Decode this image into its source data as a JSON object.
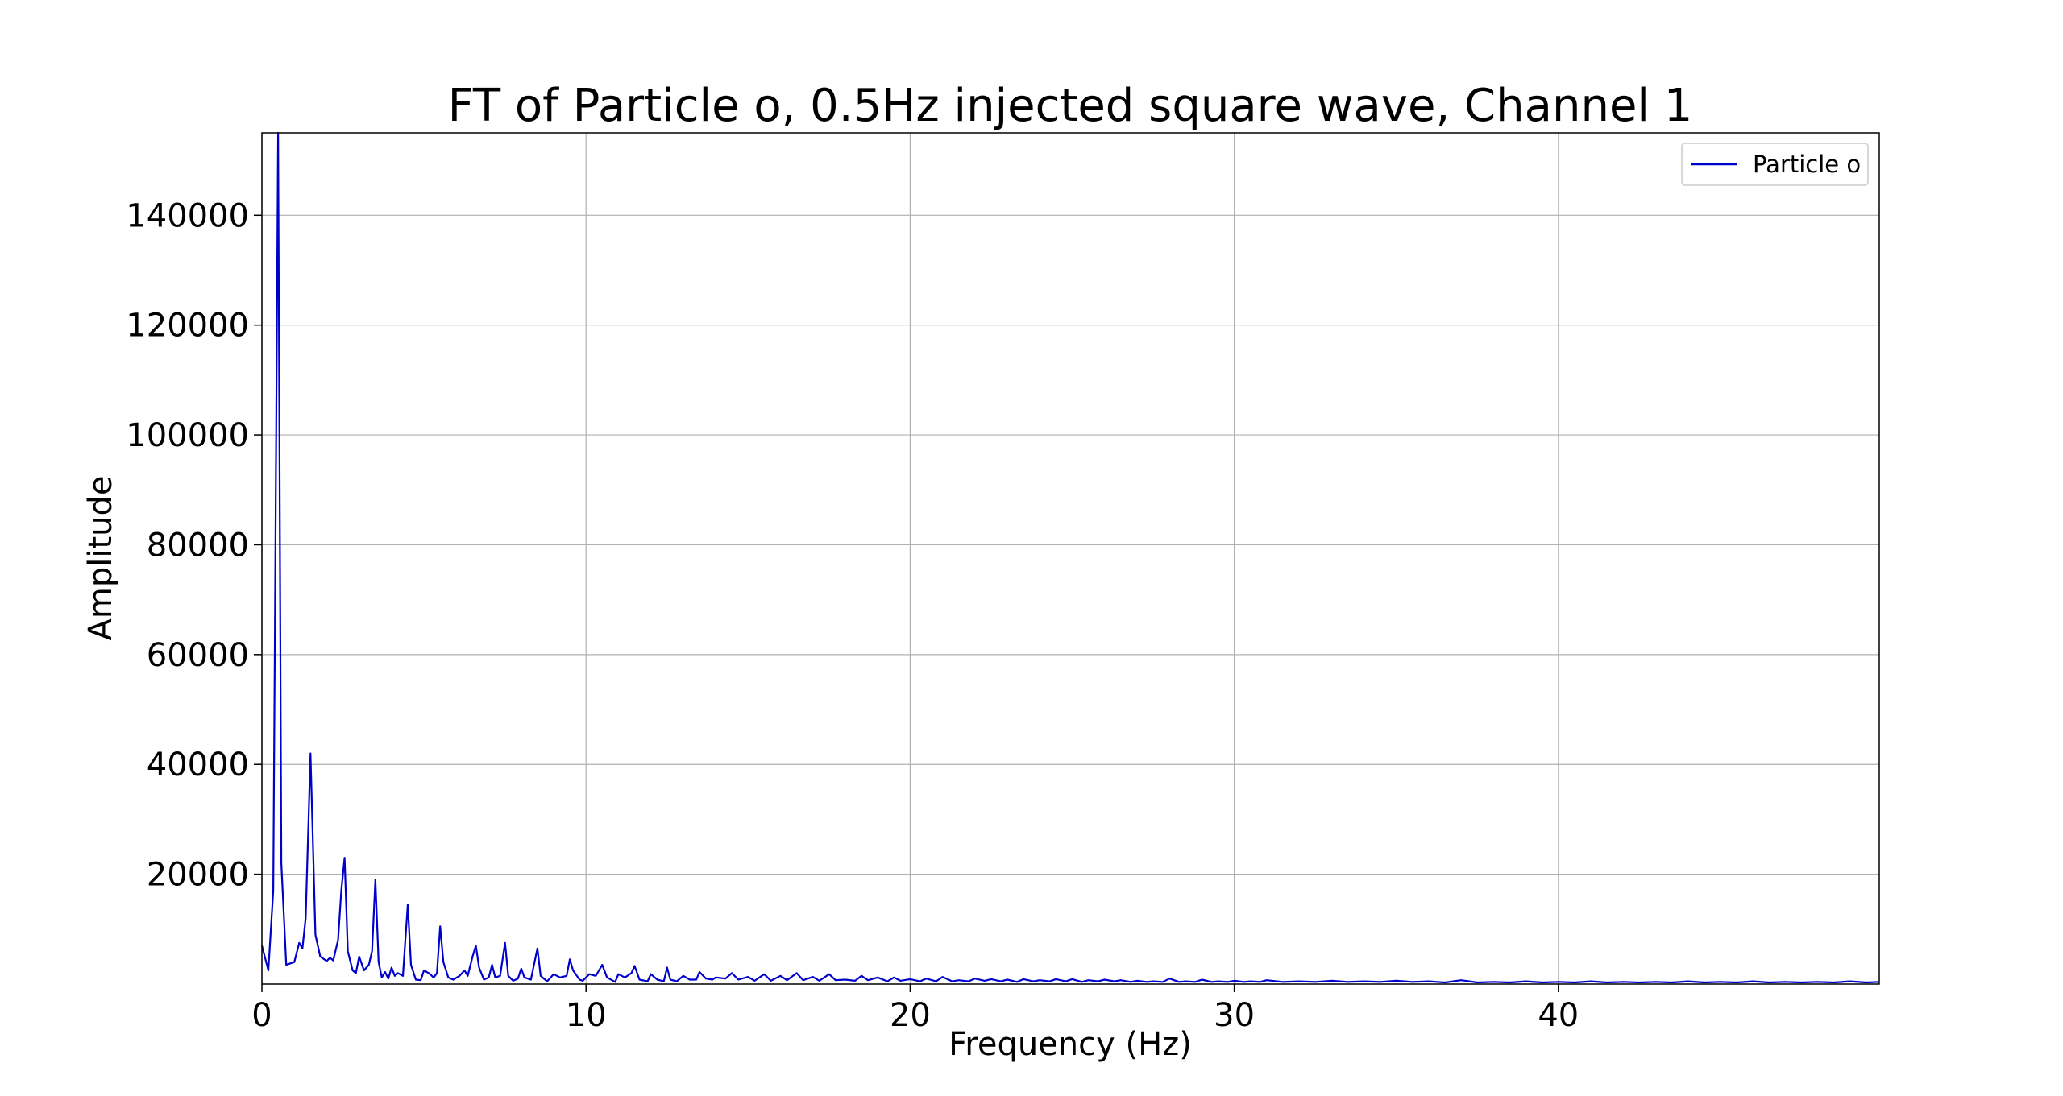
{
  "chart_data": {
    "type": "line",
    "title": "FT of Particle o, 0.5Hz injected square wave, Channel 1",
    "xlabel": "Frequency (Hz)",
    "ylabel": "Amplitude",
    "xlim": [
      0,
      49.9
    ],
    "ylim": [
      0,
      155000
    ],
    "x_ticks": [
      0,
      10,
      20,
      30,
      40
    ],
    "y_ticks": [
      20000,
      40000,
      60000,
      80000,
      100000,
      120000,
      140000
    ],
    "x_tick_labels": [
      "0",
      "10",
      "20",
      "30",
      "40"
    ],
    "y_tick_labels": [
      "20000",
      "40000",
      "60000",
      "80000",
      "100000",
      "120000",
      "140000"
    ],
    "grid": true,
    "legend": {
      "position": "top-right",
      "entries": [
        "Particle o"
      ]
    },
    "series": [
      {
        "name": "Particle o",
        "color": "#0000cc",
        "points": [
          [
            0.0,
            7000
          ],
          [
            0.2,
            2500
          ],
          [
            0.35,
            17000
          ],
          [
            0.5,
            155000
          ],
          [
            0.6,
            22000
          ],
          [
            0.75,
            3500
          ],
          [
            1.0,
            4000
          ],
          [
            1.15,
            7500
          ],
          [
            1.25,
            6500
          ],
          [
            1.35,
            12000
          ],
          [
            1.5,
            42000
          ],
          [
            1.65,
            9000
          ],
          [
            1.8,
            5000
          ],
          [
            2.0,
            4200
          ],
          [
            2.1,
            4800
          ],
          [
            2.2,
            4300
          ],
          [
            2.35,
            8000
          ],
          [
            2.45,
            17000
          ],
          [
            2.55,
            23000
          ],
          [
            2.65,
            6000
          ],
          [
            2.8,
            2500
          ],
          [
            2.9,
            2000
          ],
          [
            3.0,
            5000
          ],
          [
            3.15,
            2500
          ],
          [
            3.3,
            3500
          ],
          [
            3.4,
            6000
          ],
          [
            3.5,
            19000
          ],
          [
            3.6,
            4000
          ],
          [
            3.7,
            1200
          ],
          [
            3.8,
            2200
          ],
          [
            3.9,
            1000
          ],
          [
            4.0,
            3000
          ],
          [
            4.1,
            1500
          ],
          [
            4.2,
            2000
          ],
          [
            4.35,
            1500
          ],
          [
            4.5,
            14500
          ],
          [
            4.6,
            3500
          ],
          [
            4.75,
            800
          ],
          [
            4.9,
            700
          ],
          [
            5.0,
            2500
          ],
          [
            5.15,
            2000
          ],
          [
            5.3,
            1200
          ],
          [
            5.4,
            2000
          ],
          [
            5.5,
            10500
          ],
          [
            5.6,
            4000
          ],
          [
            5.75,
            1200
          ],
          [
            5.9,
            800
          ],
          [
            6.1,
            1500
          ],
          [
            6.25,
            2500
          ],
          [
            6.35,
            1500
          ],
          [
            6.5,
            5000
          ],
          [
            6.6,
            7000
          ],
          [
            6.7,
            3000
          ],
          [
            6.85,
            800
          ],
          [
            7.0,
            1200
          ],
          [
            7.1,
            3500
          ],
          [
            7.2,
            1200
          ],
          [
            7.35,
            1500
          ],
          [
            7.5,
            7500
          ],
          [
            7.6,
            1500
          ],
          [
            7.75,
            600
          ],
          [
            7.9,
            1000
          ],
          [
            8.0,
            2800
          ],
          [
            8.1,
            1200
          ],
          [
            8.3,
            800
          ],
          [
            8.5,
            6500
          ],
          [
            8.6,
            1500
          ],
          [
            8.8,
            500
          ],
          [
            9.0,
            1800
          ],
          [
            9.2,
            1200
          ],
          [
            9.4,
            1500
          ],
          [
            9.5,
            4500
          ],
          [
            9.6,
            2500
          ],
          [
            9.8,
            800
          ],
          [
            9.9,
            600
          ],
          [
            10.1,
            1800
          ],
          [
            10.3,
            1500
          ],
          [
            10.4,
            2500
          ],
          [
            10.5,
            3500
          ],
          [
            10.65,
            1200
          ],
          [
            10.9,
            400
          ],
          [
            11.0,
            1800
          ],
          [
            11.2,
            1200
          ],
          [
            11.4,
            2000
          ],
          [
            11.5,
            3300
          ],
          [
            11.65,
            800
          ],
          [
            11.9,
            500
          ],
          [
            12.0,
            1800
          ],
          [
            12.2,
            800
          ],
          [
            12.4,
            500
          ],
          [
            12.5,
            3000
          ],
          [
            12.6,
            800
          ],
          [
            12.8,
            500
          ],
          [
            13.0,
            1500
          ],
          [
            13.2,
            800
          ],
          [
            13.4,
            800
          ],
          [
            13.5,
            2200
          ],
          [
            13.7,
            1000
          ],
          [
            13.9,
            800
          ],
          [
            14.0,
            1200
          ],
          [
            14.3,
            1000
          ],
          [
            14.5,
            2000
          ],
          [
            14.7,
            800
          ],
          [
            15.0,
            1300
          ],
          [
            15.2,
            600
          ],
          [
            15.5,
            1800
          ],
          [
            15.7,
            600
          ],
          [
            16.0,
            1500
          ],
          [
            16.2,
            700
          ],
          [
            16.5,
            2000
          ],
          [
            16.7,
            700
          ],
          [
            17.0,
            1300
          ],
          [
            17.2,
            600
          ],
          [
            17.5,
            1800
          ],
          [
            17.7,
            700
          ],
          [
            18.0,
            800
          ],
          [
            18.3,
            600
          ],
          [
            18.5,
            1500
          ],
          [
            18.7,
            700
          ],
          [
            19.0,
            1200
          ],
          [
            19.3,
            500
          ],
          [
            19.5,
            1200
          ],
          [
            19.7,
            600
          ],
          [
            20.0,
            900
          ],
          [
            20.3,
            500
          ],
          [
            20.5,
            1000
          ],
          [
            20.8,
            500
          ],
          [
            21.0,
            1300
          ],
          [
            21.3,
            500
          ],
          [
            21.5,
            700
          ],
          [
            21.8,
            500
          ],
          [
            22.0,
            1000
          ],
          [
            22.3,
            600
          ],
          [
            22.5,
            900
          ],
          [
            22.8,
            500
          ],
          [
            23.0,
            800
          ],
          [
            23.3,
            400
          ],
          [
            23.5,
            900
          ],
          [
            23.8,
            500
          ],
          [
            24.0,
            700
          ],
          [
            24.3,
            500
          ],
          [
            24.5,
            900
          ],
          [
            24.8,
            500
          ],
          [
            25.0,
            900
          ],
          [
            25.3,
            400
          ],
          [
            25.5,
            700
          ],
          [
            25.8,
            500
          ],
          [
            26.0,
            800
          ],
          [
            26.3,
            500
          ],
          [
            26.5,
            700
          ],
          [
            26.8,
            400
          ],
          [
            27.0,
            600
          ],
          [
            27.3,
            400
          ],
          [
            27.5,
            500
          ],
          [
            27.8,
            400
          ],
          [
            28.0,
            1000
          ],
          [
            28.3,
            400
          ],
          [
            28.5,
            500
          ],
          [
            28.8,
            400
          ],
          [
            29.0,
            800
          ],
          [
            29.3,
            400
          ],
          [
            29.5,
            500
          ],
          [
            29.8,
            400
          ],
          [
            30.0,
            600
          ],
          [
            30.3,
            400
          ],
          [
            30.5,
            500
          ],
          [
            30.8,
            400
          ],
          [
            31.0,
            700
          ],
          [
            31.5,
            400
          ],
          [
            32.0,
            500
          ],
          [
            32.5,
            400
          ],
          [
            33.0,
            600
          ],
          [
            33.5,
            400
          ],
          [
            34.0,
            500
          ],
          [
            34.5,
            400
          ],
          [
            35.0,
            600
          ],
          [
            35.5,
            400
          ],
          [
            36.0,
            500
          ],
          [
            36.5,
            300
          ],
          [
            37.0,
            700
          ],
          [
            37.5,
            300
          ],
          [
            38.0,
            400
          ],
          [
            38.5,
            300
          ],
          [
            39.0,
            500
          ],
          [
            39.5,
            300
          ],
          [
            40.0,
            400
          ],
          [
            40.5,
            300
          ],
          [
            41.0,
            500
          ],
          [
            41.5,
            300
          ],
          [
            42.0,
            400
          ],
          [
            42.5,
            300
          ],
          [
            43.0,
            400
          ],
          [
            43.5,
            300
          ],
          [
            44.0,
            500
          ],
          [
            44.5,
            300
          ],
          [
            45.0,
            400
          ],
          [
            45.5,
            300
          ],
          [
            46.0,
            500
          ],
          [
            46.5,
            300
          ],
          [
            47.0,
            400
          ],
          [
            47.5,
            300
          ],
          [
            48.0,
            400
          ],
          [
            48.5,
            300
          ],
          [
            49.0,
            500
          ],
          [
            49.5,
            300
          ],
          [
            49.9,
            400
          ]
        ]
      }
    ]
  }
}
